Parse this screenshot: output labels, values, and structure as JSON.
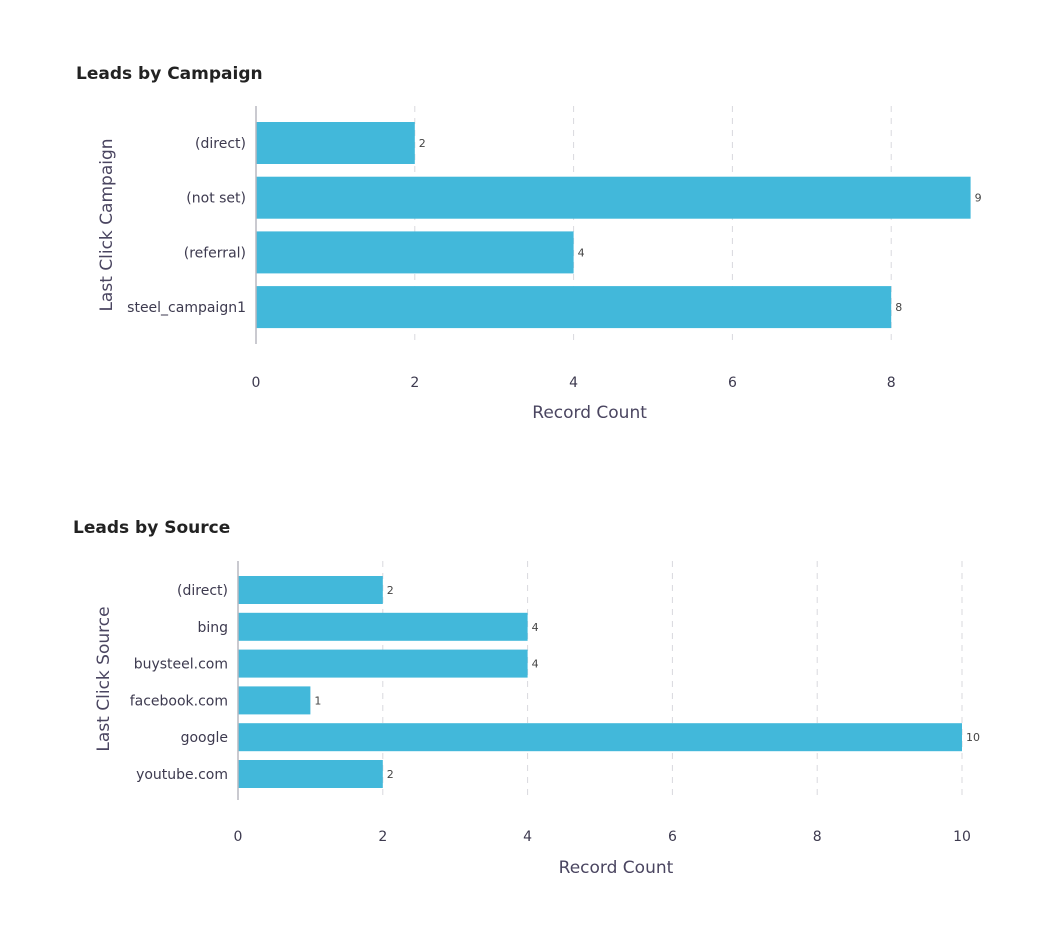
{
  "chart_data": [
    {
      "type": "bar",
      "orientation": "horizontal",
      "title": "Leads by Campaign",
      "xlabel": "Record Count",
      "ylabel": "Last Click Campaign",
      "categories": [
        "(direct)",
        "(not set)",
        "(referral)",
        "steel_campaign1"
      ],
      "values": [
        2,
        9,
        4,
        8
      ],
      "xlim": [
        0,
        9
      ],
      "xticks": [
        0,
        2,
        4,
        6,
        8
      ],
      "xtick_labels": [
        "0",
        "2",
        "4",
        "6",
        "8"
      ],
      "grid": true,
      "bar_color": "#42b8da"
    },
    {
      "type": "bar",
      "orientation": "horizontal",
      "title": "Leads by Source",
      "xlabel": "Record Count",
      "ylabel": "Last Click Source",
      "categories": [
        "(direct)",
        "bing",
        "buysteel.com",
        "facebook.com",
        "google",
        "youtube.com"
      ],
      "values": [
        2,
        4,
        4,
        1,
        10,
        2
      ],
      "xlim": [
        0,
        10
      ],
      "xticks": [
        0,
        2,
        4,
        6,
        8,
        10
      ],
      "xtick_labels": [
        "0",
        "2",
        "4",
        "6",
        "8",
        "10"
      ],
      "grid": true,
      "bar_color": "#42b8da"
    }
  ]
}
